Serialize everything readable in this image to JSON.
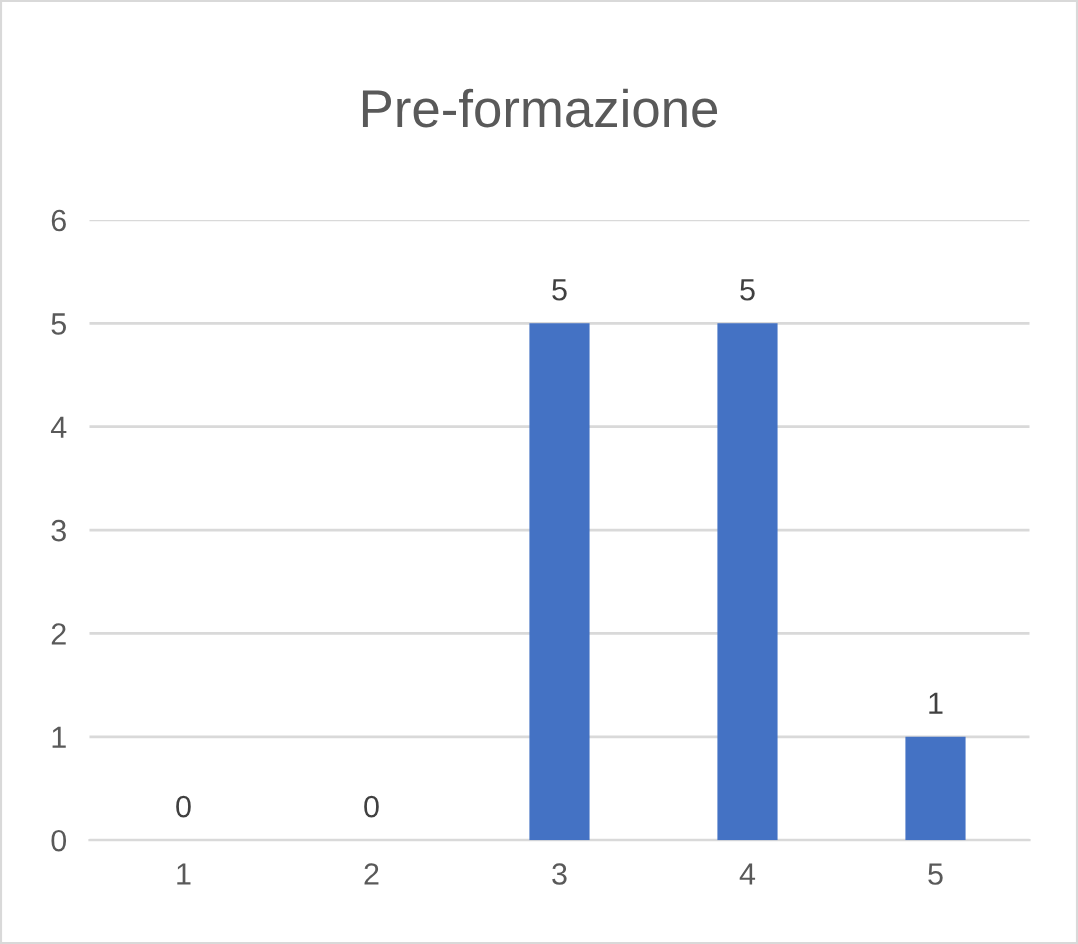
{
  "chart_data": {
    "type": "bar",
    "title": "Pre-formazione",
    "categories": [
      "1",
      "2",
      "3",
      "4",
      "5"
    ],
    "values": [
      0,
      0,
      5,
      5,
      1
    ],
    "color": "#4472c4",
    "ylim": [
      0,
      6
    ],
    "yticks": [
      0,
      1,
      2,
      3,
      4,
      5,
      6
    ],
    "grid": "y",
    "data_labels": true
  }
}
